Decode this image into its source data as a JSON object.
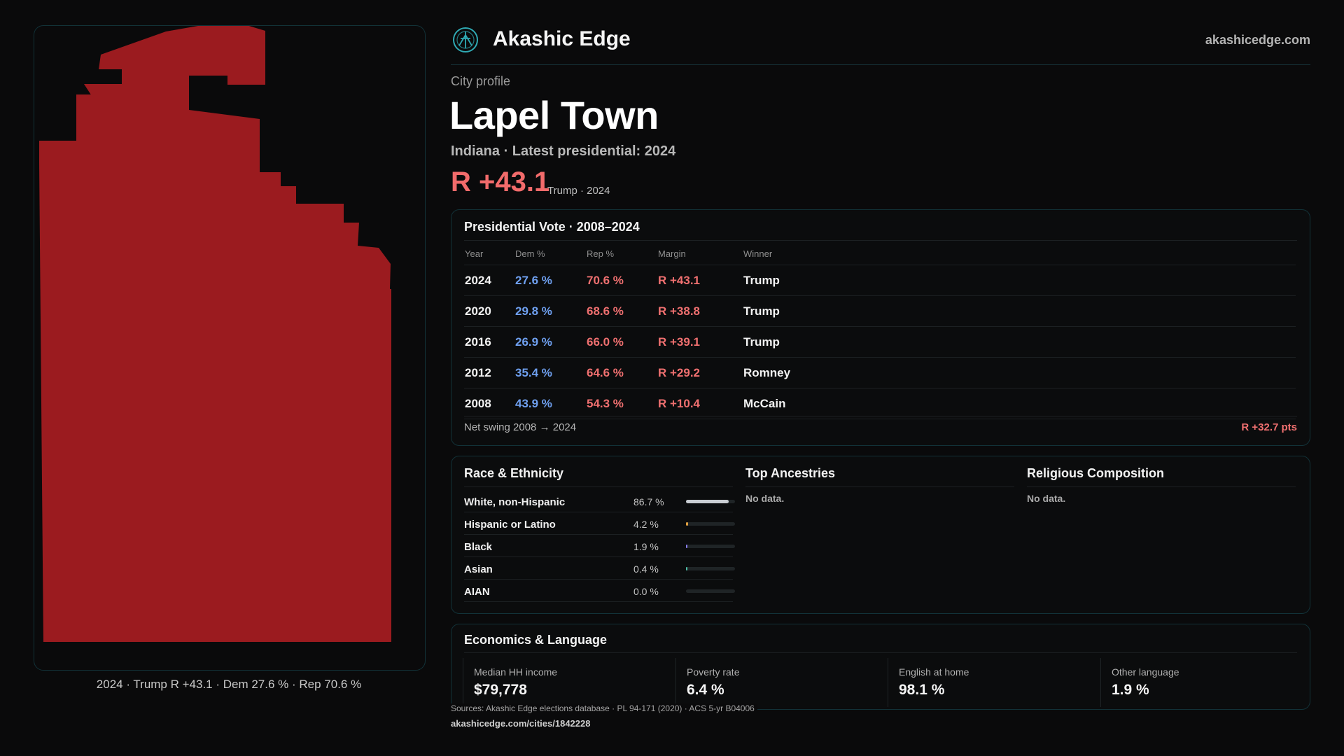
{
  "brand": {
    "name": "Akashic Edge",
    "site": "akashicedge.com",
    "colors": {
      "accent": "#2fa9b3",
      "republican": "#f07070",
      "democrat": "#6fa0f0",
      "map_fill": "#9b1b1f"
    }
  },
  "map": {
    "caption": "2024 · Trump R +43.1 · Dem 27.6 % · Rep 70.6 %"
  },
  "profile": {
    "kicker": "City profile",
    "name": "Lapel Town",
    "subtitle": "Indiana · Latest presidential: 2024",
    "headline_margin": "R +43.1",
    "headline_note": "Trump · 2024"
  },
  "presidential": {
    "title": "Presidential Vote · 2008–2024",
    "columns": [
      "Year",
      "Dem %",
      "Rep %",
      "Margin",
      "Winner"
    ],
    "rows": [
      {
        "year": "2024",
        "dem": "27.6 %",
        "rep": "70.6 %",
        "margin": "R +43.1",
        "winner": "Trump"
      },
      {
        "year": "2020",
        "dem": "29.8 %",
        "rep": "68.6 %",
        "margin": "R +38.8",
        "winner": "Trump"
      },
      {
        "year": "2016",
        "dem": "26.9 %",
        "rep": "66.0 %",
        "margin": "R +39.1",
        "winner": "Trump"
      },
      {
        "year": "2012",
        "dem": "35.4 %",
        "rep": "64.6 %",
        "margin": "R +29.2",
        "winner": "Romney"
      },
      {
        "year": "2008",
        "dem": "43.9 %",
        "rep": "54.3 %",
        "margin": "R +10.4",
        "winner": "McCain"
      }
    ],
    "swing_label": "Net swing 2008 → 2024",
    "swing_value": "R +32.7 pts"
  },
  "race": {
    "title": "Race & Ethnicity",
    "rows": [
      {
        "label": "White, non-Hispanic",
        "pct": "86.7 %",
        "share": 0.867,
        "color": "#c9cdd2"
      },
      {
        "label": "Hispanic or Latino",
        "pct": "4.2 %",
        "share": 0.042,
        "color": "#e0a040"
      },
      {
        "label": "Black",
        "pct": "1.9 %",
        "share": 0.019,
        "color": "#8a7ff0"
      },
      {
        "label": "Asian",
        "pct": "0.4 %",
        "share": 0.004,
        "color": "#4fc1a8"
      },
      {
        "label": "AIAN",
        "pct": "0.0 %",
        "share": 0.0,
        "color": "#c08060"
      }
    ]
  },
  "ancestry": {
    "title": "Top Ancestries",
    "empty": "No data."
  },
  "religion": {
    "title": "Religious Composition",
    "empty": "No data."
  },
  "economics": {
    "title": "Economics & Language",
    "stats": [
      {
        "label": "Median HH income",
        "value": "$79,778"
      },
      {
        "label": "Poverty rate",
        "value": "6.4 %"
      },
      {
        "label": "English at home",
        "value": "98.1 %"
      },
      {
        "label": "Other language",
        "value": "1.9 %"
      }
    ]
  },
  "footer": {
    "sources": "Sources: Akashic Edge elections database · PL 94-171 (2020) · ACS 5-yr B04006",
    "url": "akashicedge.com/cities/1842228"
  }
}
